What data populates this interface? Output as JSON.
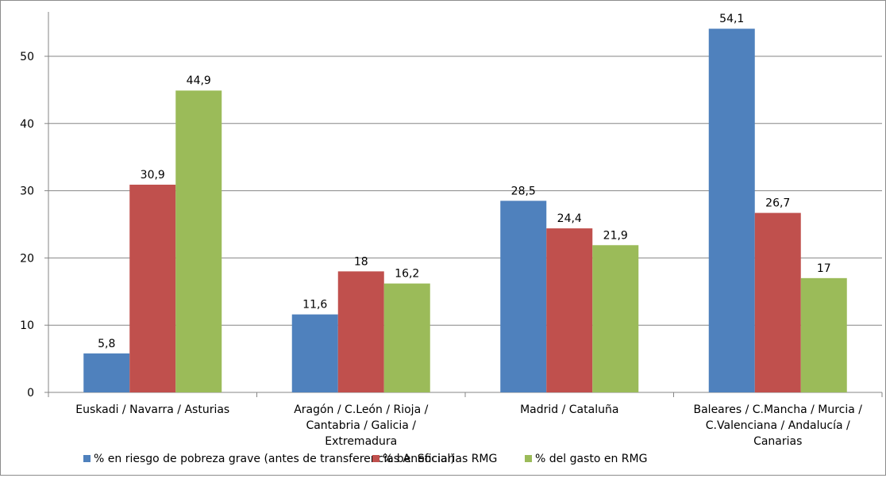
{
  "chart_data": {
    "type": "bar",
    "title": "",
    "xlabel": "",
    "ylabel": "",
    "ylim": [
      0,
      55
    ],
    "yticks": [
      0,
      10,
      20,
      30,
      40,
      50
    ],
    "grid": true,
    "legend_position": "bottom",
    "categories": [
      [
        "Euskadi / Navarra / Asturias"
      ],
      [
        "Aragón / C.León / Rioja /",
        "Cantabria / Galicia /",
        "Extremadura"
      ],
      [
        "Madrid / Cataluña"
      ],
      [
        "Baleares / C.Mancha / Murcia /",
        "C.Valenciana / Andalucía /",
        "Canarias"
      ]
    ],
    "series": [
      {
        "name": "% en riesgo de pobreza grave (antes de transferencias A. Social)",
        "color": "#4f81bd",
        "values": [
          5.8,
          11.6,
          28.5,
          54.1
        ],
        "labels": [
          "5,8",
          "11,6",
          "28,5",
          "54,1"
        ]
      },
      {
        "name": "% beneficiarias RMG",
        "color": "#c0504d",
        "values": [
          30.9,
          18,
          24.4,
          26.7
        ],
        "labels": [
          "30,9",
          "18",
          "24,4",
          "26,7"
        ]
      },
      {
        "name": "% del gasto en RMG",
        "color": "#9bbb59",
        "values": [
          44.9,
          16.2,
          21.9,
          17
        ],
        "labels": [
          "44,9",
          "16,2",
          "21,9",
          "17"
        ]
      }
    ]
  }
}
